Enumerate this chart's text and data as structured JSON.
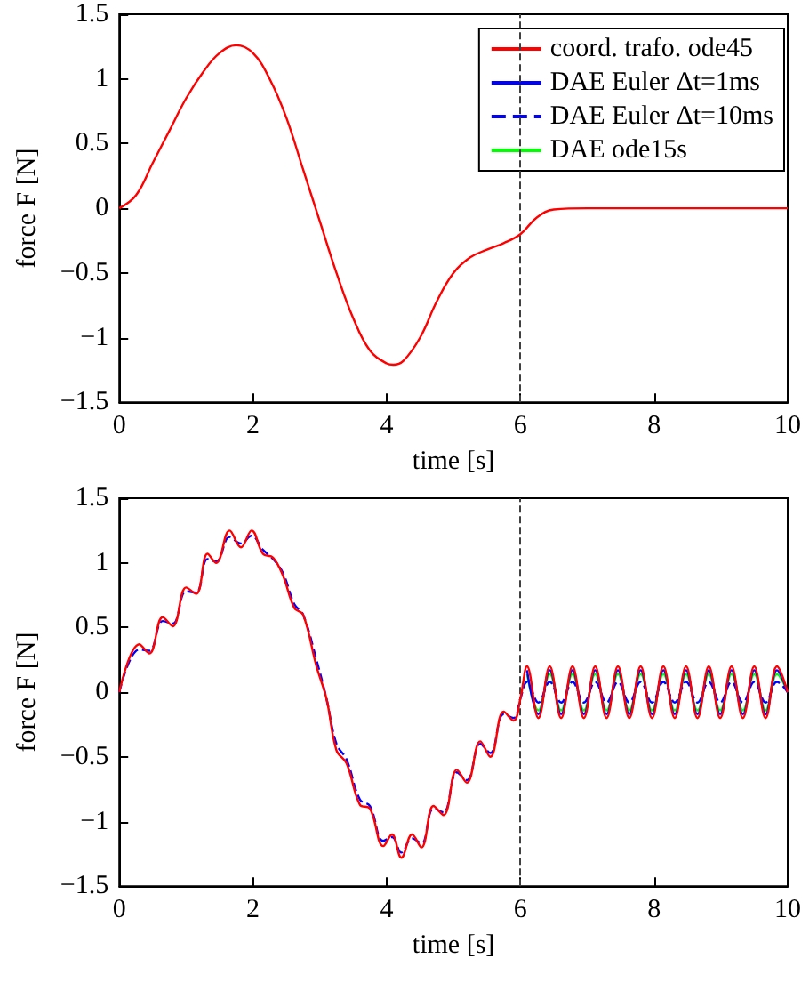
{
  "chart_data": [
    {
      "type": "line",
      "xlabel": "time [s]",
      "ylabel": "force F [N]",
      "x": [
        0,
        0.25,
        0.5,
        0.75,
        1,
        1.25,
        1.5,
        1.75,
        2,
        2.25,
        2.5,
        2.75,
        3,
        3.25,
        3.5,
        3.75,
        4,
        4.1,
        4.25,
        4.5,
        4.75,
        5,
        5.25,
        5.5,
        5.75,
        6,
        6.25,
        6.5,
        7,
        8,
        10
      ],
      "series": [
        {
          "name": "coord. trafo. ode45",
          "color": "#ff0000",
          "values": [
            0,
            0.1,
            0.35,
            0.6,
            0.85,
            1.05,
            1.2,
            1.26,
            1.2,
            1.0,
            0.7,
            0.3,
            -0.1,
            -0.5,
            -0.85,
            -1.1,
            -1.2,
            -1.21,
            -1.18,
            -1.0,
            -0.72,
            -0.5,
            -0.38,
            -0.32,
            -0.27,
            -0.2,
            -0.07,
            -0.01,
            0,
            0,
            0
          ]
        },
        {
          "name": "DAE Euler Δt=1ms",
          "color": "#0000ff",
          "values": [
            null,
            null,
            null,
            null,
            null,
            null,
            null,
            null,
            null,
            null,
            null,
            null,
            null,
            null,
            null,
            null,
            null,
            null,
            null,
            null,
            null,
            null,
            null,
            null,
            null,
            null,
            null,
            null,
            null,
            null,
            null
          ]
        },
        {
          "name": "DAE Euler Δt=10ms",
          "color": "#0000ff",
          "line_style": "dashed",
          "values": [
            null,
            null,
            null,
            null,
            null,
            null,
            null,
            null,
            null,
            null,
            null,
            null,
            null,
            null,
            null,
            null,
            null,
            null,
            null,
            null,
            null,
            null,
            null,
            null,
            null,
            null,
            null,
            null,
            null,
            null,
            null
          ]
        },
        {
          "name": "DAE ode15s",
          "color": "#00ff00",
          "values": [
            null,
            null,
            null,
            null,
            null,
            null,
            null,
            null,
            null,
            null,
            null,
            null,
            null,
            null,
            null,
            null,
            null,
            null,
            null,
            null,
            null,
            null,
            null,
            null,
            null,
            null,
            null,
            null,
            null,
            null,
            null
          ]
        }
      ],
      "xlim": [
        0,
        10
      ],
      "xticks": [
        0,
        2,
        4,
        6,
        8,
        10
      ],
      "ylim": [
        -1.5,
        1.5
      ],
      "yticks": [
        {
          "value": -1.5,
          "label": "−1.5"
        },
        {
          "value": -1,
          "label": "−1"
        },
        {
          "value": -0.5,
          "label": "−0.5"
        },
        0,
        0.5,
        1,
        1.5
      ],
      "ref_lines": [
        {
          "axis": "x",
          "value": 6,
          "color": "#404040",
          "line_style": "dashed"
        }
      ],
      "grid": false,
      "legend": "top right",
      "marker": "none"
    },
    {
      "type": "line",
      "xlabel": "time [s]",
      "ylabel": "force F [N]",
      "x": [
        0,
        0.3,
        0.45,
        0.65,
        0.8,
        1.0,
        1.15,
        1.32,
        1.45,
        1.65,
        1.82,
        1.98,
        2.15,
        2.3,
        2.45,
        2.62,
        2.75,
        2.95,
        3.1,
        3.25,
        3.4,
        3.6,
        3.75,
        3.95,
        4.08,
        4.22,
        4.38,
        4.52,
        4.7,
        4.85,
        5.05,
        5.2,
        5.4,
        5.55,
        5.75,
        5.9,
        6.0,
        6.1,
        6.27,
        6.44,
        6.61,
        6.78,
        6.95,
        7.12,
        7.29,
        7.46,
        7.63,
        7.8,
        7.97,
        8.14,
        8.31,
        8.48,
        8.65,
        8.82,
        8.99,
        9.16,
        9.33,
        9.5,
        9.67,
        9.84,
        10
      ],
      "series": [
        {
          "color": "#ff0000",
          "values": [
            0,
            0.37,
            0.3,
            0.58,
            0.51,
            0.81,
            0.76,
            1.07,
            1.0,
            1.25,
            1.12,
            1.25,
            1.07,
            1.04,
            0.9,
            0.65,
            0.6,
            0.2,
            -0.05,
            -0.45,
            -0.55,
            -0.87,
            -0.9,
            -1.19,
            -1.1,
            -1.28,
            -1.1,
            -1.2,
            -0.88,
            -0.95,
            -0.6,
            -0.7,
            -0.38,
            -0.5,
            -0.15,
            -0.22,
            -0.05,
            0.2,
            -0.2,
            0.2,
            -0.2,
            0.2,
            -0.2,
            0.2,
            -0.2,
            0.2,
            -0.2,
            0.2,
            -0.2,
            0.2,
            -0.2,
            0.2,
            -0.2,
            0.2,
            -0.2,
            0.2,
            -0.2,
            0.2,
            -0.2,
            0.2,
            0
          ]
        },
        {
          "color": "#0000ff",
          "values": [
            null,
            null,
            null,
            null,
            null,
            null,
            null,
            null,
            null,
            null,
            null,
            null,
            null,
            null,
            null,
            null,
            null,
            null,
            null,
            null,
            null,
            null,
            null,
            null,
            null,
            null,
            null,
            null,
            null,
            null,
            null,
            null,
            null,
            null,
            null,
            null,
            null,
            0.17,
            -0.17,
            0.17,
            -0.17,
            0.17,
            -0.17,
            0.17,
            -0.17,
            0.17,
            -0.17,
            0.17,
            -0.17,
            0.17,
            -0.17,
            0.17,
            -0.17,
            0.17,
            -0.17,
            0.17,
            -0.17,
            0.17,
            -0.17,
            0.17,
            0
          ]
        },
        {
          "color": "#0000ff",
          "line_style": "dashed",
          "values": [
            0,
            0.33,
            0.32,
            0.55,
            0.53,
            0.78,
            0.77,
            1.03,
            1.01,
            1.2,
            1.15,
            1.21,
            1.1,
            1.03,
            0.92,
            0.68,
            0.6,
            0.25,
            -0.05,
            -0.4,
            -0.52,
            -0.83,
            -0.88,
            -1.15,
            -1.12,
            -1.24,
            -1.13,
            -1.17,
            -0.9,
            -0.93,
            -0.62,
            -0.68,
            -0.4,
            -0.47,
            -0.17,
            -0.2,
            -0.05,
            0.08,
            -0.08,
            0.08,
            -0.08,
            0.08,
            -0.08,
            0.08,
            -0.08,
            0.08,
            -0.08,
            0.08,
            -0.08,
            0.08,
            -0.08,
            0.08,
            -0.08,
            0.08,
            -0.08,
            0.08,
            -0.08,
            0.08,
            -0.08,
            0.08,
            0
          ]
        },
        {
          "color": "#00ff00",
          "values": [
            null,
            null,
            null,
            null,
            null,
            null,
            null,
            null,
            null,
            null,
            null,
            null,
            null,
            null,
            null,
            null,
            null,
            null,
            null,
            null,
            null,
            null,
            null,
            null,
            null,
            null,
            null,
            null,
            null,
            null,
            null,
            null,
            null,
            null,
            null,
            null,
            null,
            0.14,
            -0.14,
            0.14,
            -0.14,
            0.14,
            -0.14,
            0.14,
            -0.14,
            0.14,
            -0.14,
            0.14,
            -0.14,
            0.14,
            -0.14,
            0.14,
            -0.14,
            0.14,
            -0.14,
            0.14,
            -0.14,
            0.14,
            -0.14,
            0.14,
            0
          ]
        }
      ],
      "xlim": [
        0,
        10
      ],
      "xticks": [
        0,
        2,
        4,
        6,
        8,
        10
      ],
      "ylim": [
        -1.5,
        1.5
      ],
      "yticks": [
        {
          "value": -1.5,
          "label": "−1.5"
        },
        {
          "value": -1,
          "label": "−1"
        },
        {
          "value": -0.5,
          "label": "−0.5"
        },
        0,
        0.5,
        1,
        1.5
      ],
      "ref_lines": [
        {
          "axis": "x",
          "value": 6,
          "color": "#404040",
          "line_style": "dashed"
        }
      ],
      "grid": false,
      "legend": false,
      "marker": "none"
    }
  ]
}
